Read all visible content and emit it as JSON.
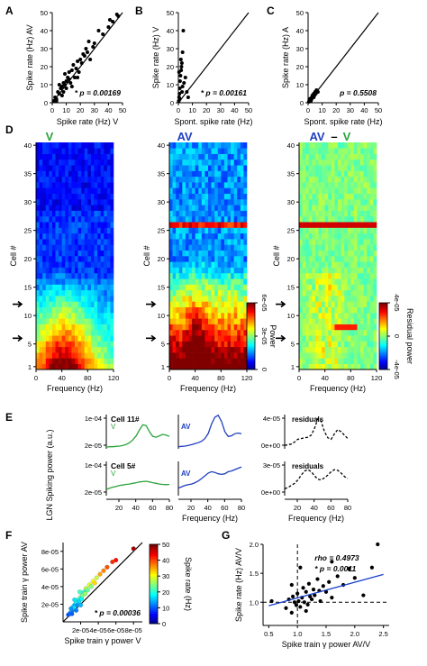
{
  "colors": {
    "green": "#2aa33a",
    "blue": "#1f3fbf",
    "fit": "#1a3fcc",
    "black": "#000000"
  },
  "panels": {
    "A": "A",
    "B": "B",
    "C": "C",
    "D": "D",
    "E": "E",
    "F": "F",
    "G": "G"
  },
  "chart_data": [
    {
      "id": "A",
      "type": "scatter",
      "xlabel": "Spike rate (Hz) V",
      "ylabel": "Spike rate (Hz) AV",
      "xlim": [
        0,
        50
      ],
      "ylim": [
        0,
        50
      ],
      "ticks": [
        "0",
        "10",
        "20",
        "30",
        "40",
        "50"
      ],
      "annotation": "* p = 0.00169",
      "identity_line": true,
      "points": [
        [
          1,
          1
        ],
        [
          2,
          3
        ],
        [
          3,
          2
        ],
        [
          4,
          6
        ],
        [
          5,
          5
        ],
        [
          6,
          8
        ],
        [
          7,
          9
        ],
        [
          8,
          6
        ],
        [
          8,
          11
        ],
        [
          9,
          10
        ],
        [
          10,
          12
        ],
        [
          10,
          8
        ],
        [
          11,
          14
        ],
        [
          12,
          13
        ],
        [
          12,
          17
        ],
        [
          13,
          11
        ],
        [
          14,
          18
        ],
        [
          15,
          21
        ],
        [
          16,
          14
        ],
        [
          17,
          19
        ],
        [
          18,
          23
        ],
        [
          19,
          17
        ],
        [
          20,
          24
        ],
        [
          21,
          22
        ],
        [
          22,
          27
        ],
        [
          23,
          26
        ],
        [
          24,
          30
        ],
        [
          25,
          28
        ],
        [
          26,
          34
        ],
        [
          27,
          24
        ],
        [
          29,
          31
        ],
        [
          30,
          33
        ],
        [
          33,
          40
        ],
        [
          36,
          38
        ],
        [
          40,
          42
        ],
        [
          41,
          46
        ],
        [
          43,
          45
        ],
        [
          46,
          49
        ],
        [
          47,
          48
        ],
        [
          3,
          1
        ],
        [
          5,
          10
        ],
        [
          9,
          16
        ],
        [
          14,
          9
        ],
        [
          7,
          4
        ],
        [
          18,
          14
        ]
      ]
    },
    {
      "id": "B",
      "type": "scatter",
      "xlabel": "Spont. spike rate (Hz)",
      "ylabel": "Spike rate (Hz) V",
      "xlim": [
        0,
        50
      ],
      "ylim": [
        0,
        50
      ],
      "ticks": [
        "0",
        "10",
        "20",
        "30",
        "40",
        "50"
      ],
      "annotation": "* p = 0.00161",
      "identity_line": true,
      "points": [
        [
          0.3,
          1
        ],
        [
          0.5,
          3
        ],
        [
          0.8,
          5
        ],
        [
          1,
          8
        ],
        [
          1.2,
          12
        ],
        [
          1.5,
          15
        ],
        [
          2,
          18
        ],
        [
          2.2,
          20
        ],
        [
          2.5,
          22
        ],
        [
          3,
          9
        ],
        [
          3,
          28
        ],
        [
          3.5,
          40
        ],
        [
          4,
          11
        ],
        [
          5,
          14
        ],
        [
          6,
          6
        ],
        [
          7,
          3
        ],
        [
          0.5,
          17
        ],
        [
          1.8,
          24
        ],
        [
          2.6,
          6
        ],
        [
          1,
          2
        ]
      ]
    },
    {
      "id": "C",
      "type": "scatter",
      "xlabel": "Spont. spike rate (Hz)",
      "ylabel": "Spike rate (Hz) A",
      "xlim": [
        0,
        50
      ],
      "ylim": [
        0,
        50
      ],
      "ticks": [
        "0",
        "10",
        "20",
        "30",
        "40",
        "50"
      ],
      "annotation": "p = 0.5508",
      "identity_line": true,
      "points": [
        [
          0.5,
          0.5
        ],
        [
          1,
          1.5
        ],
        [
          1.5,
          1
        ],
        [
          2,
          2.5
        ],
        [
          2.5,
          2
        ],
        [
          3,
          3.5
        ],
        [
          3,
          4
        ],
        [
          3.5,
          3
        ],
        [
          4,
          5
        ],
        [
          4.5,
          4
        ],
        [
          5,
          6
        ],
        [
          5.5,
          5
        ],
        [
          6,
          7
        ],
        [
          6.5,
          6
        ],
        [
          2,
          1
        ],
        [
          1,
          2
        ],
        [
          7,
          6
        ],
        [
          4,
          3
        ]
      ]
    },
    {
      "id": "D",
      "type": "heatmap",
      "titles": [
        "V",
        "AV",
        "AV",
        "–",
        "V"
      ],
      "xlabel": "Frequency (Hz)",
      "ylabel": "Cell #",
      "xticks": [
        "0",
        "40",
        "80",
        "120"
      ],
      "yticks": [
        "1",
        "5",
        "10",
        "15",
        "20",
        "25",
        "30",
        "35",
        "40"
      ],
      "arrow_cells": [
        6,
        12
      ],
      "colorbar_power": {
        "label": "Power",
        "ticks": [
          "6e-05",
          "3e-05",
          "0"
        ],
        "range": [
          0,
          6e-05
        ]
      },
      "colorbar_residual": {
        "label": "Residual power",
        "ticks": [
          "4e-05",
          "0",
          "-4e-05"
        ],
        "range": [
          -4e-05,
          4e-05
        ]
      },
      "n_cells": 40,
      "n_freq": 24
    },
    {
      "id": "E",
      "type": "line",
      "ylabel": "LGN Spiking power (a.u.)",
      "xlabel": "Frequency (Hz)",
      "xticks": [
        "20",
        "40",
        "60",
        "80"
      ],
      "rows": [
        {
          "cell": "Cell 11#",
          "yticks": [
            "1e-04",
            "2e-05"
          ],
          "res_ticks": [
            "4e-05",
            "0e+00"
          ],
          "residual_label": "residuals",
          "V": [
            0.05,
            0.06,
            0.06,
            0.07,
            0.08,
            0.1,
            0.13,
            0.18,
            0.26,
            0.38,
            0.55,
            0.7,
            0.68,
            0.5,
            0.36,
            0.34,
            0.38,
            0.42,
            0.4,
            0.36
          ],
          "AV": [
            0.06,
            0.07,
            0.08,
            0.1,
            0.12,
            0.15,
            0.18,
            0.22,
            0.3,
            0.45,
            0.72,
            0.92,
            0.98,
            0.8,
            0.5,
            0.36,
            0.38,
            0.44,
            0.46,
            0.44
          ],
          "res": [
            0.1,
            0.12,
            0.14,
            0.2,
            0.28,
            0.3,
            0.32,
            0.34,
            0.4,
            0.6,
            0.88,
            0.8,
            0.5,
            0.32,
            0.28,
            0.44,
            0.56,
            0.5,
            0.4,
            0.3
          ]
        },
        {
          "cell": "Cell 5#",
          "yticks": [
            "1e-04",
            "2e-05"
          ],
          "res_ticks": [
            "3e-05",
            "0e+00"
          ],
          "residual_label": "residuals",
          "V": [
            0.18,
            0.22,
            0.25,
            0.27,
            0.3,
            0.31,
            0.33,
            0.34,
            0.36,
            0.38,
            0.4,
            0.41,
            0.42,
            0.4,
            0.38,
            0.36,
            0.34,
            0.33,
            0.32,
            0.33
          ],
          "AV": [
            0.22,
            0.26,
            0.3,
            0.32,
            0.34,
            0.38,
            0.43,
            0.5,
            0.58,
            0.66,
            0.7,
            0.68,
            0.64,
            0.62,
            0.64,
            0.7,
            0.72,
            0.76,
            0.8,
            0.84
          ],
          "res": [
            0.2,
            0.24,
            0.3,
            0.36,
            0.46,
            0.6,
            0.72,
            0.76,
            0.7,
            0.58,
            0.48,
            0.46,
            0.52,
            0.6,
            0.7,
            0.76,
            0.74,
            0.66,
            0.56,
            0.5
          ]
        }
      ]
    },
    {
      "id": "F",
      "type": "scatter",
      "xlabel": "Spike train γ power V",
      "ylabel": "Spike train γ power AV",
      "xlim": [
        0,
        9e-05
      ],
      "ylim": [
        0,
        9e-05
      ],
      "xticks": [
        "2e-05",
        "4e-05",
        "6e-05",
        "8e-05"
      ],
      "yticks": [
        "2e-05",
        "4e-05",
        "6e-05",
        "8e-05"
      ],
      "colorbar": {
        "label": "Spike rate (Hz)",
        "ticks": [
          "0",
          "10",
          "20",
          "30",
          "40",
          "50"
        ]
      },
      "annotation": "* p = 0.00036",
      "points": [
        [
          0.6,
          0.8,
          3
        ],
        [
          0.8,
          1.0,
          5
        ],
        [
          1.0,
          1.2,
          8
        ],
        [
          1.1,
          1.4,
          6
        ],
        [
          1.2,
          1.8,
          10
        ],
        [
          1.3,
          1.6,
          12
        ],
        [
          1.4,
          2.0,
          9
        ],
        [
          1.5,
          2.2,
          14
        ],
        [
          1.6,
          1.9,
          7
        ],
        [
          1.7,
          2.5,
          16
        ],
        [
          1.8,
          2.3,
          11
        ],
        [
          2.0,
          2.8,
          18
        ],
        [
          2.1,
          2.6,
          13
        ],
        [
          2.2,
          3.0,
          20
        ],
        [
          2.4,
          3.4,
          15
        ],
        [
          2.5,
          3.2,
          22
        ],
        [
          2.6,
          3.8,
          24
        ],
        [
          2.8,
          3.6,
          19
        ],
        [
          3.0,
          4.2,
          26
        ],
        [
          3.2,
          4.0,
          21
        ],
        [
          3.4,
          4.6,
          28
        ],
        [
          3.6,
          4.4,
          30
        ],
        [
          3.8,
          5.0,
          25
        ],
        [
          4.2,
          5.4,
          33
        ],
        [
          4.6,
          5.8,
          35
        ],
        [
          5.0,
          6.2,
          38
        ],
        [
          5.6,
          6.8,
          40
        ],
        [
          6.0,
          7.0,
          42
        ],
        [
          8.0,
          8.3,
          48
        ],
        [
          1.0,
          0.9,
          4
        ],
        [
          1.5,
          1.3,
          6
        ],
        [
          2.0,
          1.9,
          9
        ],
        [
          0.9,
          1.5,
          7
        ],
        [
          1.9,
          3.4,
          17
        ],
        [
          1.3,
          2.5,
          12
        ]
      ]
    },
    {
      "id": "G",
      "type": "scatter",
      "xlabel": "Spike train γ power AV/V",
      "ylabel": "Spike rate (Hz) AV/V",
      "xlim": [
        0.4,
        2.6
      ],
      "ylim": [
        0.6,
        2.0
      ],
      "xticks": [
        "0.5",
        "1.0",
        "1.5",
        "2.0",
        "2.5"
      ],
      "yticks": [
        "1.0",
        "1.5",
        "2.0"
      ],
      "annotation_rho": "rho = 0.4973",
      "annotation_p": "* p = 0.0011",
      "fit": [
        [
          0.5,
          0.94
        ],
        [
          2.5,
          1.48
        ]
      ],
      "points": [
        [
          0.55,
          1.02
        ],
        [
          0.8,
          0.9
        ],
        [
          0.85,
          1.05
        ],
        [
          0.9,
          0.82
        ],
        [
          0.92,
          1.1
        ],
        [
          0.95,
          1.0
        ],
        [
          0.98,
          0.95
        ],
        [
          1.0,
          1.15
        ],
        [
          1.02,
          1.02
        ],
        [
          1.05,
          0.92
        ],
        [
          1.08,
          1.08
        ],
        [
          1.1,
          1.25
        ],
        [
          1.12,
          1.0
        ],
        [
          1.15,
          1.18
        ],
        [
          1.18,
          0.96
        ],
        [
          1.2,
          1.32
        ],
        [
          1.22,
          1.1
        ],
        [
          1.25,
          1.05
        ],
        [
          1.28,
          1.22
        ],
        [
          1.3,
          1.12
        ],
        [
          1.35,
          1.4
        ],
        [
          1.38,
          1.2
        ],
        [
          1.4,
          1.02
        ],
        [
          1.45,
          1.28
        ],
        [
          1.5,
          1.18
        ],
        [
          1.55,
          1.35
        ],
        [
          1.6,
          1.08
        ],
        [
          1.7,
          1.45
        ],
        [
          1.8,
          1.3
        ],
        [
          1.9,
          1.58
        ],
        [
          2.0,
          1.42
        ],
        [
          2.15,
          1.12
        ],
        [
          2.3,
          1.6
        ],
        [
          2.4,
          2.0
        ],
        [
          1.05,
          1.6
        ],
        [
          0.9,
          1.3
        ],
        [
          1.15,
          0.85
        ],
        [
          1.6,
          1.7
        ]
      ]
    }
  ]
}
